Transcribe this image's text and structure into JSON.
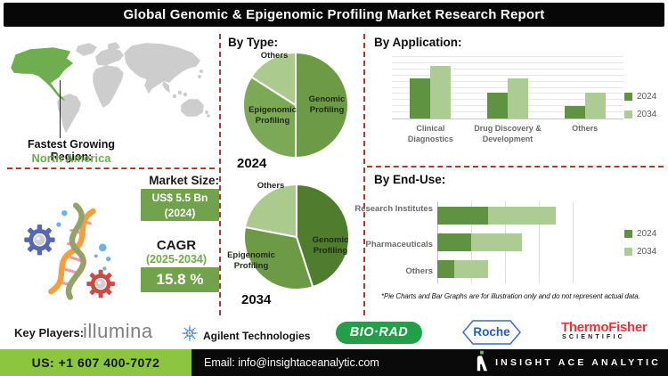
{
  "title": "Global Genomic & Epigenomic Profiling Market Research Report",
  "left_panel": {
    "fastest_growing_label": "Fastest Growing Region:",
    "fastest_growing_region": "North America",
    "market_size_label": "Market Size:",
    "market_size_value": "US$ 5.5 Bn",
    "market_size_year": "(2024)",
    "cagr_label": "CAGR",
    "cagr_period": "(2025-2034)",
    "cagr_value": "15.8 %"
  },
  "chart_data": [
    {
      "type": "pie",
      "name": "by-type-2024",
      "title": "By Type:",
      "year_label": "2024",
      "slices": [
        {
          "label": "Genomic Profiling",
          "value": 50,
          "color": "#6d9b45"
        },
        {
          "label": "Epigenomic Profiling",
          "value": 34,
          "color": "#7ba956"
        },
        {
          "label": "Others",
          "value": 16,
          "color": "#abca8e"
        }
      ]
    },
    {
      "type": "pie",
      "name": "by-type-2034",
      "title": "By Type:",
      "year_label": "2034",
      "slices": [
        {
          "label": "Genomic Profiling",
          "value": 45,
          "color": "#507c2e"
        },
        {
          "label": "Epigenomic Profiling",
          "value": 33,
          "color": "#6d9b45"
        },
        {
          "label": "Others",
          "value": 22,
          "color": "#abca8e"
        }
      ]
    },
    {
      "type": "bar",
      "name": "by-application",
      "title": "By Application:",
      "categories": [
        "Clinical Diagnostics",
        "Drug Discovery & Development",
        "Others"
      ],
      "series": [
        {
          "name": "2024",
          "color": "#5f9241",
          "values": [
            65,
            42,
            21
          ]
        },
        {
          "name": "2034",
          "color": "#adcc94",
          "values": [
            85,
            65,
            42
          ]
        }
      ],
      "ylim": [
        0,
        100
      ],
      "grid_step": 10,
      "grid": true,
      "legend_position": "right"
    },
    {
      "type": "bar",
      "name": "by-end-use",
      "title": "By End-Use:",
      "orientation": "horizontal-stacked",
      "categories": [
        "Research Institutes",
        "Pharmaceuticals",
        "Others"
      ],
      "series": [
        {
          "name": "2024",
          "color": "#5f9241",
          "values": [
            1.5,
            1.0,
            0.5
          ]
        },
        {
          "name": "2034",
          "color": "#adcc94",
          "values": [
            2.0,
            1.5,
            1.0
          ]
        }
      ],
      "xlim": [
        0,
        4
      ],
      "grid_step": 1,
      "grid": true,
      "legend_position": "right"
    }
  ],
  "footnote": "*Pie Charts and Bar Graphs are for illustration only and do not represent actual data.",
  "key_players": {
    "label": "Key Players:",
    "illumina": "illumina",
    "agilent": "Agilent Technologies",
    "biorad": "BIO·RAD",
    "roche": "Roche",
    "thermo_line1": "ThermoFisher",
    "thermo_line2": "SCIENTIFIC"
  },
  "footer": {
    "phone": "US: +1 607 400-7072",
    "email": "Email: info@insightaceanalytic.com",
    "brand": "INSIGHT ACE ANALYTIC"
  },
  "colors": {
    "series_2024": "#5f9241",
    "series_2034": "#adcc94",
    "badge_green": "#70a34b",
    "region_green": "#6faa4d",
    "map_green": "#6fae4e",
    "map_gray": "#cdcdcd",
    "divider_red": "#ad3a2d",
    "footer_green": "#8cc63e",
    "banner_black": "#070707"
  }
}
